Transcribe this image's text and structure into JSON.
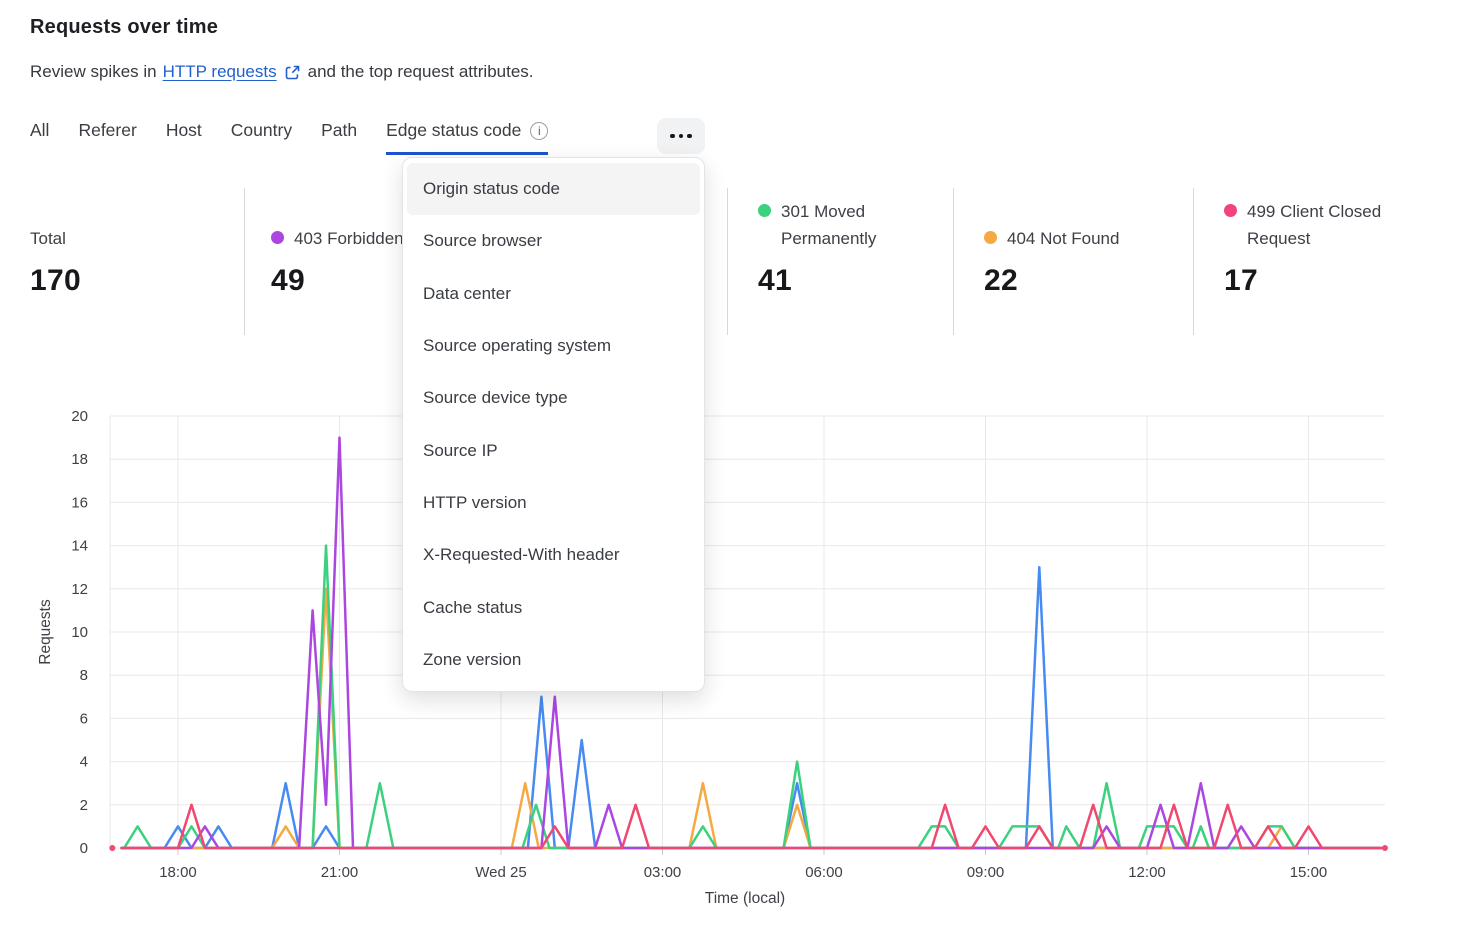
{
  "header": {
    "title": "Requests over time",
    "subtitle_prefix": "Review spikes in",
    "subtitle_link": "HTTP requests",
    "subtitle_suffix": "and the top request attributes."
  },
  "icons": {
    "external_link": "external-link",
    "info": "info-circle",
    "more": "ellipsis"
  },
  "tabs": {
    "items": [
      {
        "label": "All"
      },
      {
        "label": "Referer"
      },
      {
        "label": "Host"
      },
      {
        "label": "Country"
      },
      {
        "label": "Path"
      },
      {
        "label": "Edge status code",
        "active": true
      }
    ]
  },
  "dropdown": {
    "highlighted_index": 0,
    "items": [
      "Origin status code",
      "Source browser",
      "Data center",
      "Source operating system",
      "Source device type",
      "Source IP",
      "HTTP version",
      "X-Requested-With header",
      "Cache status",
      "Zone version"
    ]
  },
  "legend": {
    "total": {
      "label": "Total",
      "value": "170"
    },
    "series": [
      {
        "label": "403 Forbidden",
        "value": "49",
        "color": "#ab47e0"
      },
      {
        "label": "301 Moved Permanently",
        "value": "41",
        "color": "#3bd17e"
      },
      {
        "label": "404 Not Found",
        "value": "22",
        "color": "#f5a942"
      },
      {
        "label": "499 Client Closed Request",
        "value": "17",
        "color": "#f2437c"
      }
    ]
  },
  "chart_data": {
    "type": "line",
    "xlabel": "Time (local)",
    "ylabel": "Requests",
    "ylim": [
      0,
      20
    ],
    "grid": true,
    "x_unit_note": "decimal hours; 18 = Tue 18:00, 24 = Wed 25 00:00, 39 = Wed 15:00",
    "xdomain": [
      16.74,
      40.45
    ],
    "yticks": [
      0,
      2,
      4,
      6,
      8,
      10,
      12,
      14,
      16,
      18,
      20
    ],
    "xticks": [
      {
        "t": 18,
        "label": "18:00"
      },
      {
        "t": 21,
        "label": "21:00"
      },
      {
        "t": 24,
        "label": "Wed 25"
      },
      {
        "t": 27,
        "label": "03:00"
      },
      {
        "t": 30,
        "label": "06:00"
      },
      {
        "t": 33,
        "label": "09:00"
      },
      {
        "t": 36,
        "label": "12:00"
      },
      {
        "t": 39,
        "label": "15:00"
      }
    ],
    "series": [
      {
        "name": "",
        "color": "#478bf2",
        "points": [
          [
            16.95,
            0
          ],
          [
            17.75,
            0
          ],
          [
            18.0,
            1
          ],
          [
            18.25,
            0
          ],
          [
            18.5,
            0
          ],
          [
            18.75,
            1
          ],
          [
            19.0,
            0
          ],
          [
            19.75,
            0
          ],
          [
            20.0,
            3
          ],
          [
            20.25,
            0
          ],
          [
            20.5,
            0
          ],
          [
            20.75,
            1
          ],
          [
            21.0,
            0
          ],
          [
            24.5,
            0
          ],
          [
            24.75,
            7
          ],
          [
            25.0,
            0
          ],
          [
            25.25,
            0
          ],
          [
            25.5,
            5
          ],
          [
            25.75,
            0
          ],
          [
            29.25,
            0
          ],
          [
            29.5,
            3
          ],
          [
            29.75,
            0
          ],
          [
            33.75,
            0
          ],
          [
            34.0,
            13
          ],
          [
            34.25,
            0
          ],
          [
            40.35,
            0
          ]
        ]
      },
      {
        "name": "404 Not Found",
        "color": "#f5a942",
        "points": [
          [
            16.95,
            0
          ],
          [
            19.75,
            0
          ],
          [
            20.0,
            1
          ],
          [
            20.25,
            0
          ],
          [
            20.5,
            0
          ],
          [
            20.75,
            12
          ],
          [
            21.0,
            0
          ],
          [
            24.2,
            0
          ],
          [
            24.45,
            3
          ],
          [
            24.7,
            0
          ],
          [
            27.5,
            0
          ],
          [
            27.75,
            3
          ],
          [
            28.0,
            0
          ],
          [
            29.25,
            0
          ],
          [
            29.5,
            2
          ],
          [
            29.75,
            0
          ],
          [
            38.25,
            0
          ],
          [
            38.5,
            1
          ],
          [
            38.75,
            0
          ],
          [
            40.35,
            0
          ]
        ]
      },
      {
        "name": "301 Moved Permanently",
        "color": "#3bd17e",
        "points": [
          [
            16.95,
            0
          ],
          [
            17.0,
            0
          ],
          [
            17.25,
            1
          ],
          [
            17.5,
            0
          ],
          [
            18.0,
            0
          ],
          [
            18.25,
            1
          ],
          [
            18.5,
            0
          ],
          [
            20.5,
            0
          ],
          [
            20.75,
            14
          ],
          [
            21.0,
            0
          ],
          [
            21.5,
            0
          ],
          [
            21.75,
            3
          ],
          [
            22.0,
            0
          ],
          [
            24.4,
            0
          ],
          [
            24.65,
            2
          ],
          [
            24.9,
            0
          ],
          [
            27.5,
            0
          ],
          [
            27.75,
            1
          ],
          [
            28.0,
            0
          ],
          [
            29.25,
            0
          ],
          [
            29.5,
            4
          ],
          [
            29.75,
            0
          ],
          [
            31.75,
            0
          ],
          [
            32.0,
            1
          ],
          [
            32.25,
            1
          ],
          [
            32.5,
            0
          ],
          [
            33.25,
            0
          ],
          [
            33.5,
            1
          ],
          [
            33.75,
            1
          ],
          [
            34.0,
            1
          ],
          [
            34.25,
            0
          ],
          [
            34.35,
            0
          ],
          [
            34.5,
            1
          ],
          [
            34.75,
            0
          ],
          [
            35.0,
            0
          ],
          [
            35.25,
            3
          ],
          [
            35.5,
            0
          ],
          [
            35.85,
            0
          ],
          [
            36.0,
            1
          ],
          [
            36.25,
            1
          ],
          [
            36.5,
            1
          ],
          [
            36.75,
            0
          ],
          [
            36.85,
            0
          ],
          [
            37.0,
            1
          ],
          [
            37.15,
            0
          ],
          [
            38.0,
            0
          ],
          [
            38.25,
            1
          ],
          [
            38.5,
            1
          ],
          [
            38.75,
            0
          ],
          [
            40.35,
            0
          ]
        ]
      },
      {
        "name": "403 Forbidden",
        "color": "#ab47e0",
        "points": [
          [
            16.95,
            0
          ],
          [
            18.25,
            0
          ],
          [
            18.5,
            1
          ],
          [
            18.75,
            0
          ],
          [
            20.25,
            0
          ],
          [
            20.5,
            11
          ],
          [
            20.75,
            2
          ],
          [
            21.0,
            19
          ],
          [
            21.25,
            0
          ],
          [
            24.75,
            0
          ],
          [
            25.0,
            7
          ],
          [
            25.25,
            0
          ],
          [
            25.75,
            0
          ],
          [
            26.0,
            2
          ],
          [
            26.25,
            0
          ],
          [
            35.0,
            0
          ],
          [
            35.25,
            1
          ],
          [
            35.5,
            0
          ],
          [
            36.0,
            0
          ],
          [
            36.25,
            2
          ],
          [
            36.5,
            0
          ],
          [
            36.75,
            0
          ],
          [
            37.0,
            3
          ],
          [
            37.25,
            0
          ],
          [
            37.5,
            0
          ],
          [
            37.75,
            1
          ],
          [
            38.0,
            0
          ],
          [
            40.35,
            0
          ]
        ]
      },
      {
        "name": "499 Client Closed Request",
        "color": "#f0486e",
        "points": [
          [
            16.95,
            0
          ],
          [
            18.0,
            0
          ],
          [
            18.25,
            2
          ],
          [
            18.5,
            0
          ],
          [
            24.75,
            0
          ],
          [
            25.0,
            1
          ],
          [
            25.25,
            0
          ],
          [
            26.25,
            0
          ],
          [
            26.5,
            2
          ],
          [
            26.75,
            0
          ],
          [
            32.0,
            0
          ],
          [
            32.25,
            2
          ],
          [
            32.5,
            0
          ],
          [
            32.75,
            0
          ],
          [
            33.0,
            1
          ],
          [
            33.25,
            0
          ],
          [
            33.75,
            0
          ],
          [
            34.0,
            1
          ],
          [
            34.25,
            0
          ],
          [
            34.75,
            0
          ],
          [
            35.0,
            2
          ],
          [
            35.25,
            0
          ],
          [
            36.25,
            0
          ],
          [
            36.5,
            2
          ],
          [
            36.75,
            0
          ],
          [
            37.25,
            0
          ],
          [
            37.5,
            2
          ],
          [
            37.75,
            0
          ],
          [
            38.0,
            0
          ],
          [
            38.25,
            1
          ],
          [
            38.5,
            0
          ],
          [
            38.75,
            0
          ],
          [
            39.0,
            1
          ],
          [
            39.25,
            0
          ],
          [
            40.35,
            0
          ]
        ],
        "dots": [
          [
            16.78,
            0
          ],
          [
            40.42,
            0
          ]
        ]
      }
    ]
  }
}
